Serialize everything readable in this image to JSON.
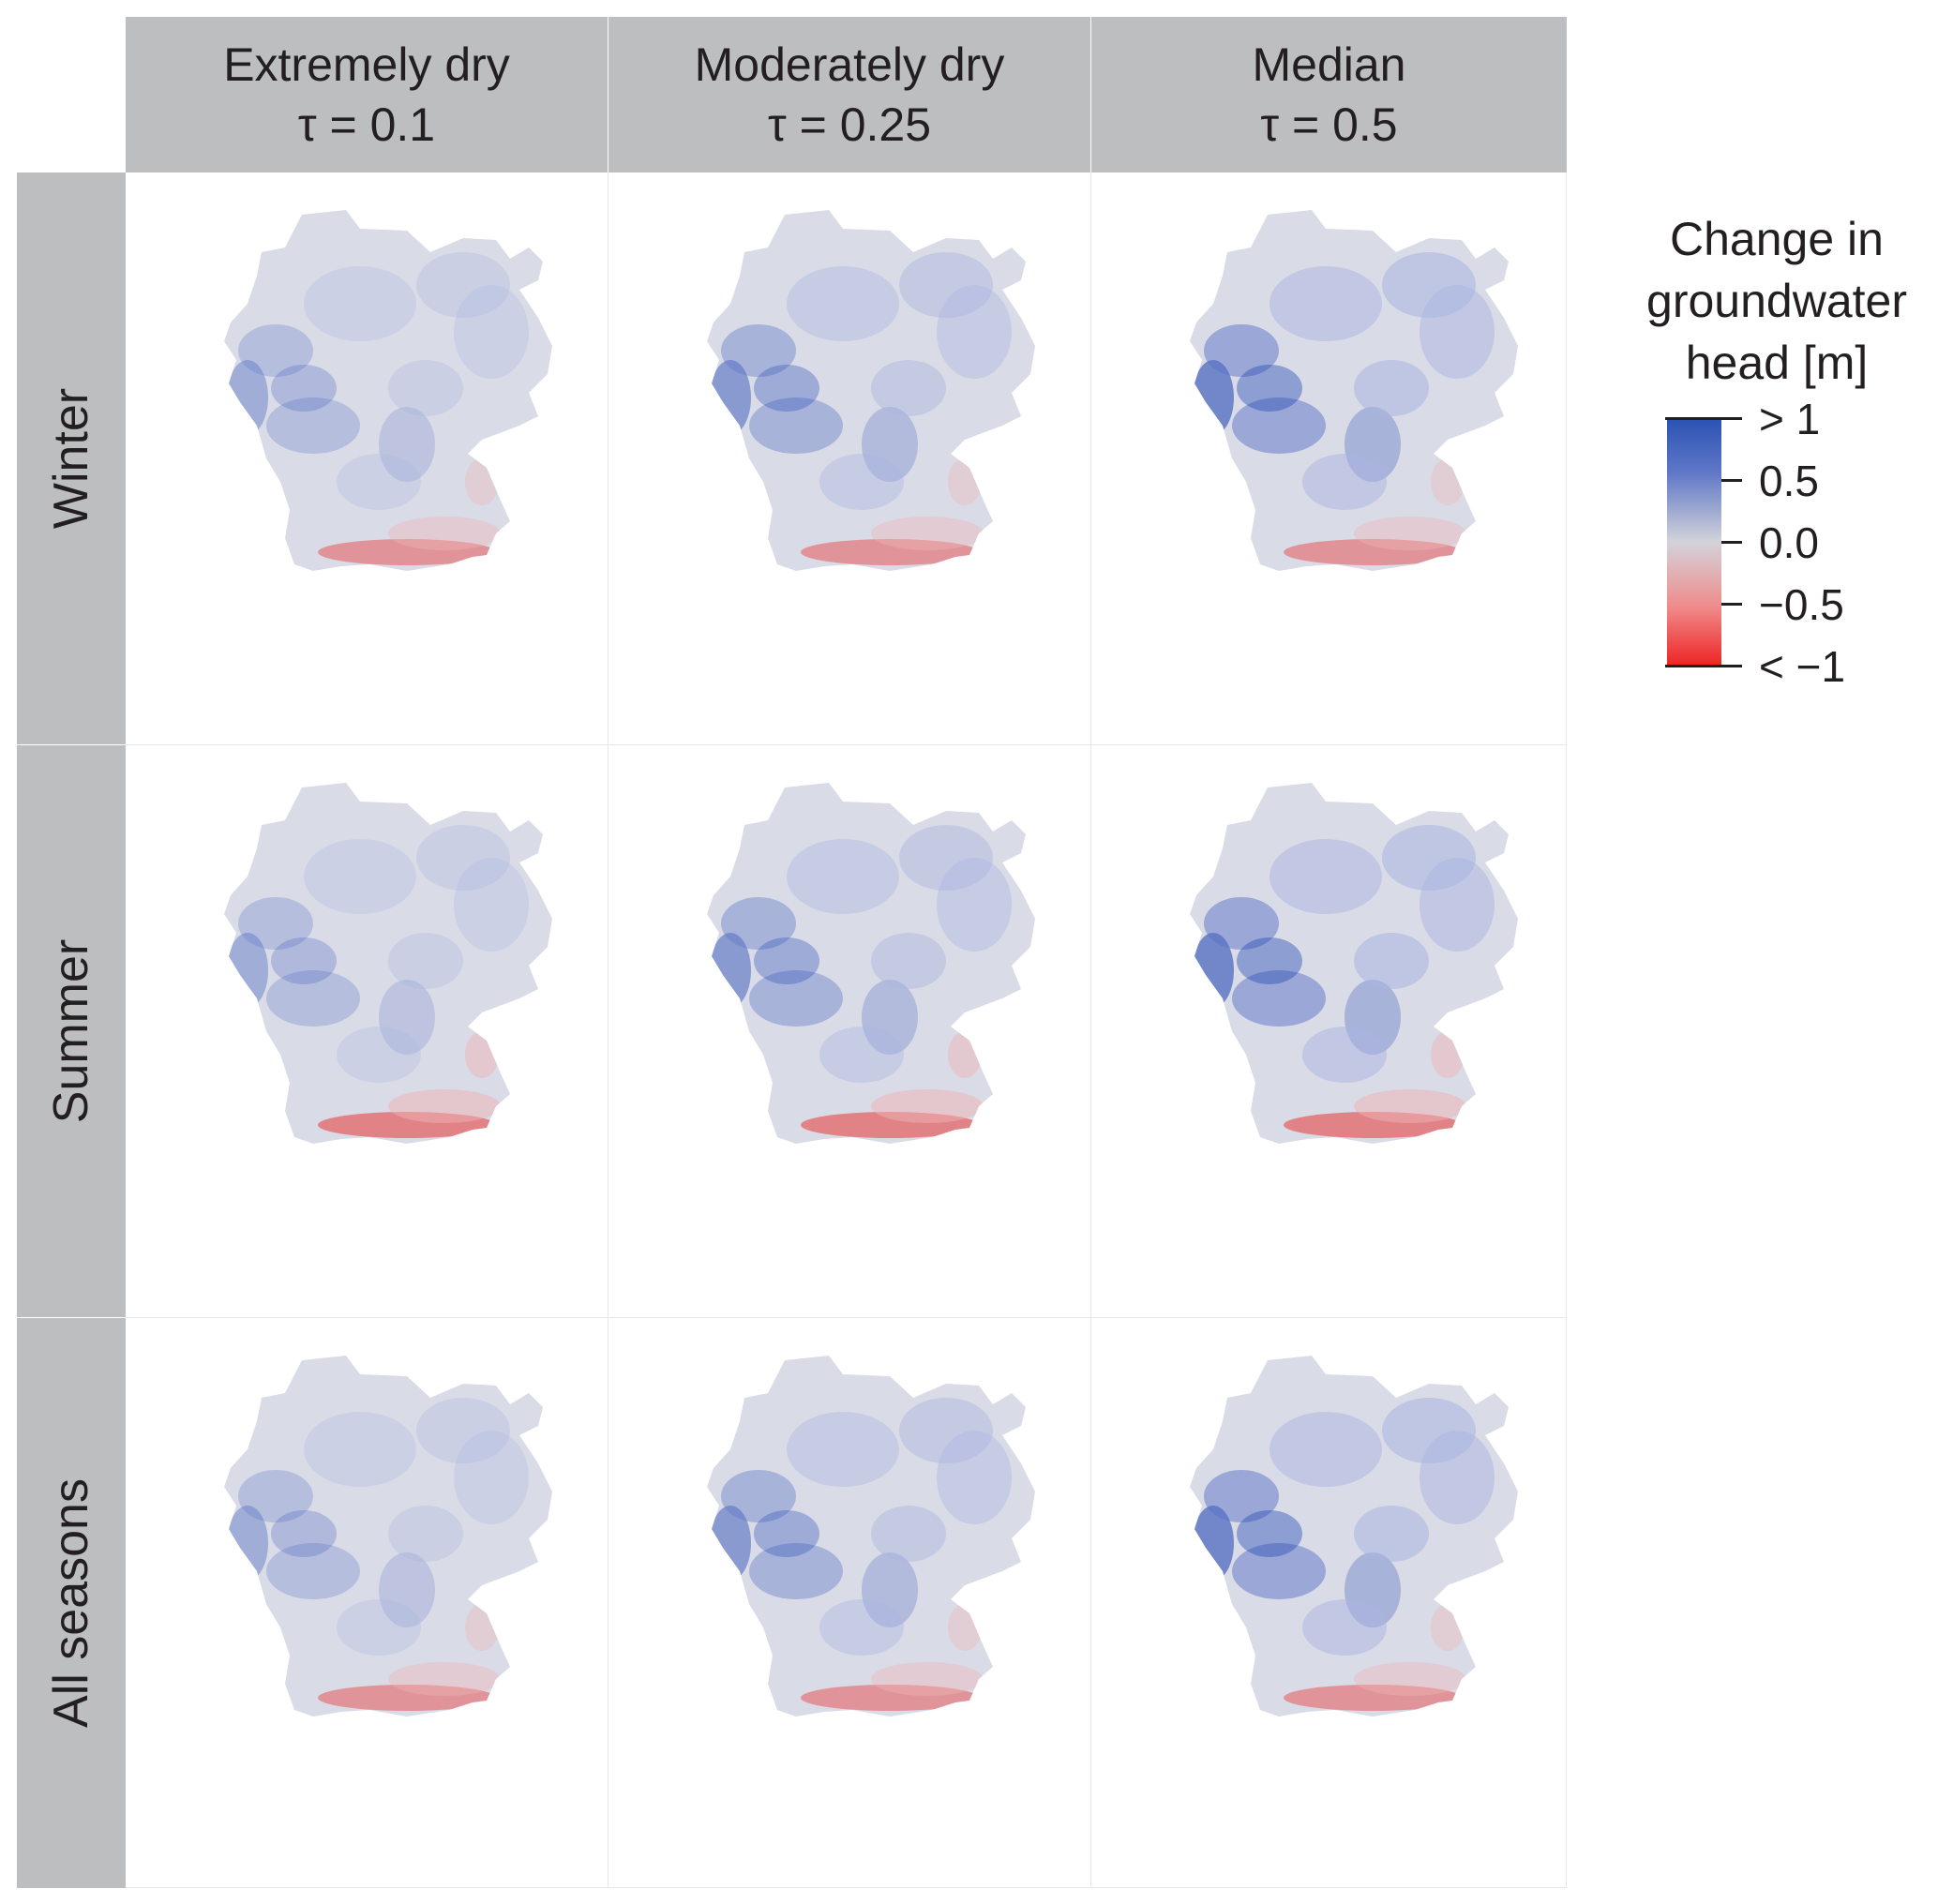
{
  "columns": [
    {
      "title": "Extremely dry",
      "subtitle": "τ = 0.1"
    },
    {
      "title": "Moderately dry",
      "subtitle": "τ = 0.25"
    },
    {
      "title": "Median",
      "subtitle": "τ = 0.5"
    }
  ],
  "rows": [
    {
      "label": "Winter"
    },
    {
      "label": "Summer"
    },
    {
      "label": "All seasons"
    }
  ],
  "legend": {
    "title_lines": [
      "Change in",
      "groundwater",
      "head [m]"
    ],
    "ticks": [
      "> 1",
      "0.5",
      "0.0",
      "−0.5",
      "< −1"
    ],
    "colors": {
      "high": "#2b52b3",
      "mid": "#d2d3da",
      "low": "#ee2424"
    }
  },
  "map_colors": {
    "base": "#d9dbe6",
    "blue_light": "#a9b4e0",
    "blue": "#5a72c8",
    "blue_dark": "#2c4fb8",
    "red": "#e83838",
    "red_light": "#efb3b3"
  }
}
